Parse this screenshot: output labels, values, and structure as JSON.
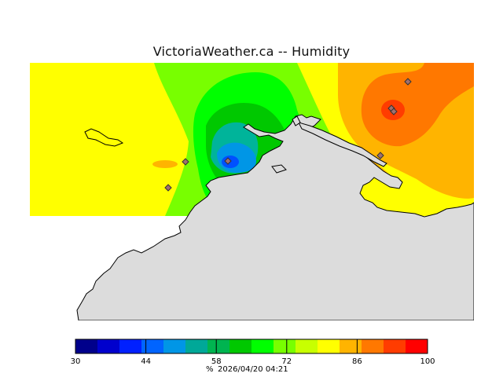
{
  "title": "VictoriaWeather.ca -- Humidity",
  "legend": {
    "unit": "%",
    "timestamp": "2026/04/20 04:21",
    "min": 30,
    "max": 100,
    "tick_labels": [
      "30",
      "44",
      "58",
      "72",
      "86",
      "100"
    ],
    "tick_values": [
      30,
      44,
      58,
      72,
      86,
      100
    ],
    "colors": [
      "#00008b",
      "#0000cd",
      "#0020ff",
      "#0064ff",
      "#0096e6",
      "#00a898",
      "#00b450",
      "#00c800",
      "#00ff00",
      "#78ff00",
      "#c8ff00",
      "#ffff00",
      "#ffb400",
      "#ff7800",
      "#ff3c00",
      "#ff0000"
    ]
  },
  "colors": {
    "land": "#dcdcdc",
    "yellow": "#ffff00",
    "lime": "#78ff00",
    "green": "#00ff00",
    "mid_green": "#00c800",
    "dark_green": "#00a830",
    "teal": "#00b49a",
    "light_blue": "#0096e6",
    "blue": "#0050ff",
    "light_orange": "#ffb400",
    "orange": "#ff7800",
    "red_orange": "#ff3c00",
    "station": "#a07070"
  },
  "stations_count": 5
}
